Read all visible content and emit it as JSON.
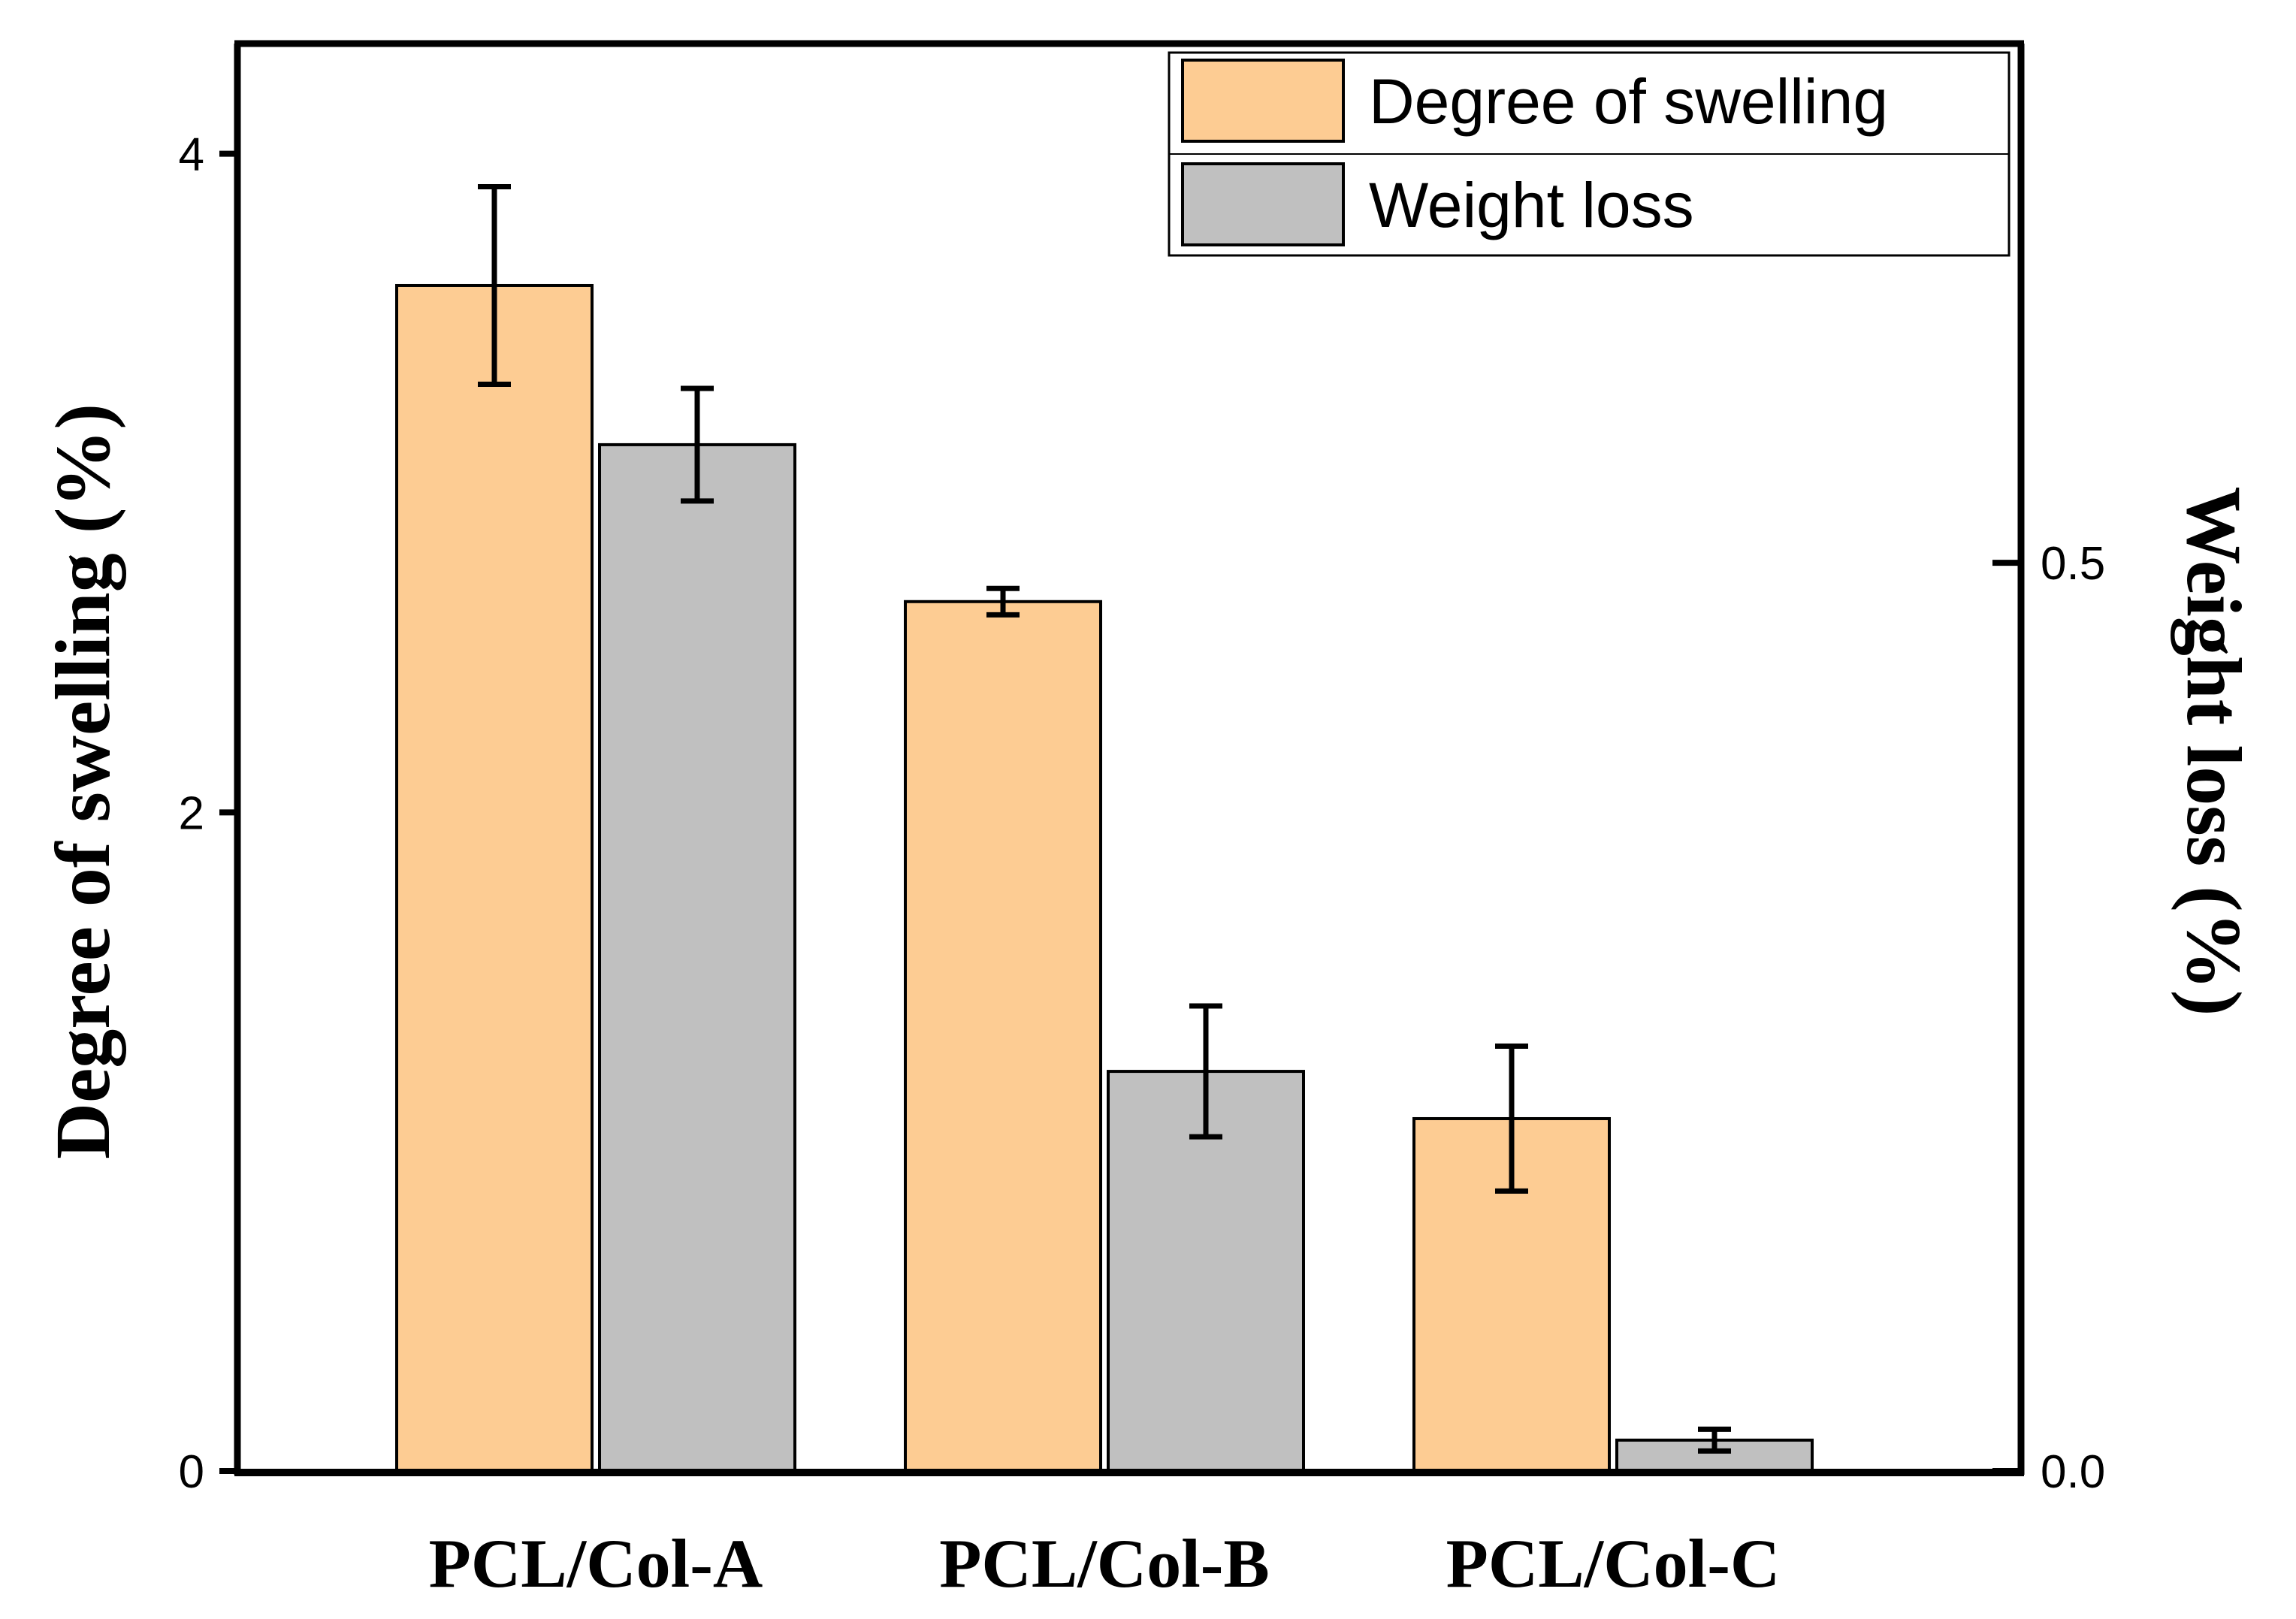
{
  "chart_data": {
    "type": "bar",
    "categories": [
      "PCL/Col-A",
      "PCL/Col-B",
      "PCL/Col-C"
    ],
    "series": [
      {
        "name": "Degree of swelling",
        "axis": "left",
        "color": "#FDCC93",
        "values": [
          3.6,
          2.64,
          1.07
        ],
        "errors": [
          0.3,
          0.04,
          0.22
        ]
      },
      {
        "name": "Weight loss",
        "axis": "right",
        "color": "#C0C0C0",
        "values": [
          0.565,
          0.22,
          0.017
        ],
        "errors": [
          0.031,
          0.036,
          0.006
        ]
      }
    ],
    "ylabel": "Degree of swelling (%)",
    "y2label": "Weight loss (%)",
    "xlabel": "",
    "ylim": [
      0,
      4.33
    ],
    "y2lim": [
      0,
      0.785
    ],
    "yticks": [
      0,
      2,
      4
    ],
    "y2ticks": [
      0.0,
      0.5
    ],
    "ytick_labels": [
      "0",
      "2",
      "4"
    ],
    "y2tick_labels": [
      "0.0",
      "0.5"
    ],
    "legend_position": "top-right",
    "grid": false
  }
}
